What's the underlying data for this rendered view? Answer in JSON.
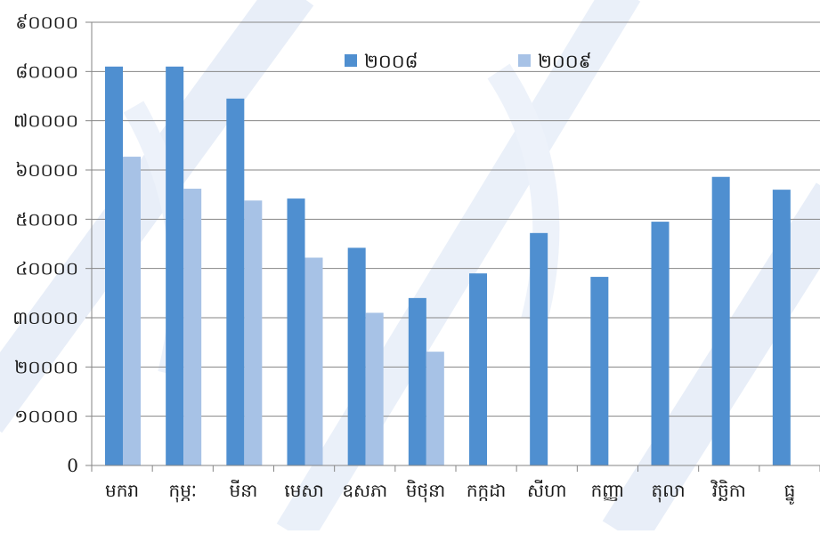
{
  "chart_data": {
    "type": "bar",
    "title": "",
    "xlabel": "",
    "ylabel": "",
    "ylim": [
      0,
      90000
    ],
    "yticks": [
      0,
      10000,
      20000,
      30000,
      40000,
      50000,
      60000,
      70000,
      80000,
      90000
    ],
    "ytick_labels": [
      "0",
      "១០០០០",
      "២០០០០",
      "៣០០០០",
      "៤០០០០",
      "៥០០០០",
      "៦០០០០",
      "៧០០០០",
      "៨០០០០",
      "៩០០០០"
    ],
    "categories": [
      "មករា",
      "កុម្ភៈ",
      "មីនា",
      "មេសា",
      "ឧសភា",
      "មិថុនា",
      "កក្កដា",
      "សីហា",
      "កញ្ញា",
      "តុលា",
      "វិច្ឆិកា",
      "ធ្នូ"
    ],
    "series": [
      {
        "name": "២០០៨",
        "color": "#4f8fd0",
        "values": [
          81000,
          81000,
          74500,
          54200,
          44200,
          34000,
          39000,
          47200,
          38300,
          49500,
          58600,
          56000
        ]
      },
      {
        "name": "២០០៩",
        "color": "#a7c2e6",
        "values": [
          62700,
          56200,
          53800,
          42200,
          31000,
          23100,
          null,
          null,
          null,
          null,
          null,
          null
        ]
      }
    ],
    "grid": true,
    "legend": "top-center",
    "colors": {
      "grid": "#868686",
      "axis": "#868686",
      "watermark": "#e4ebf6"
    }
  }
}
